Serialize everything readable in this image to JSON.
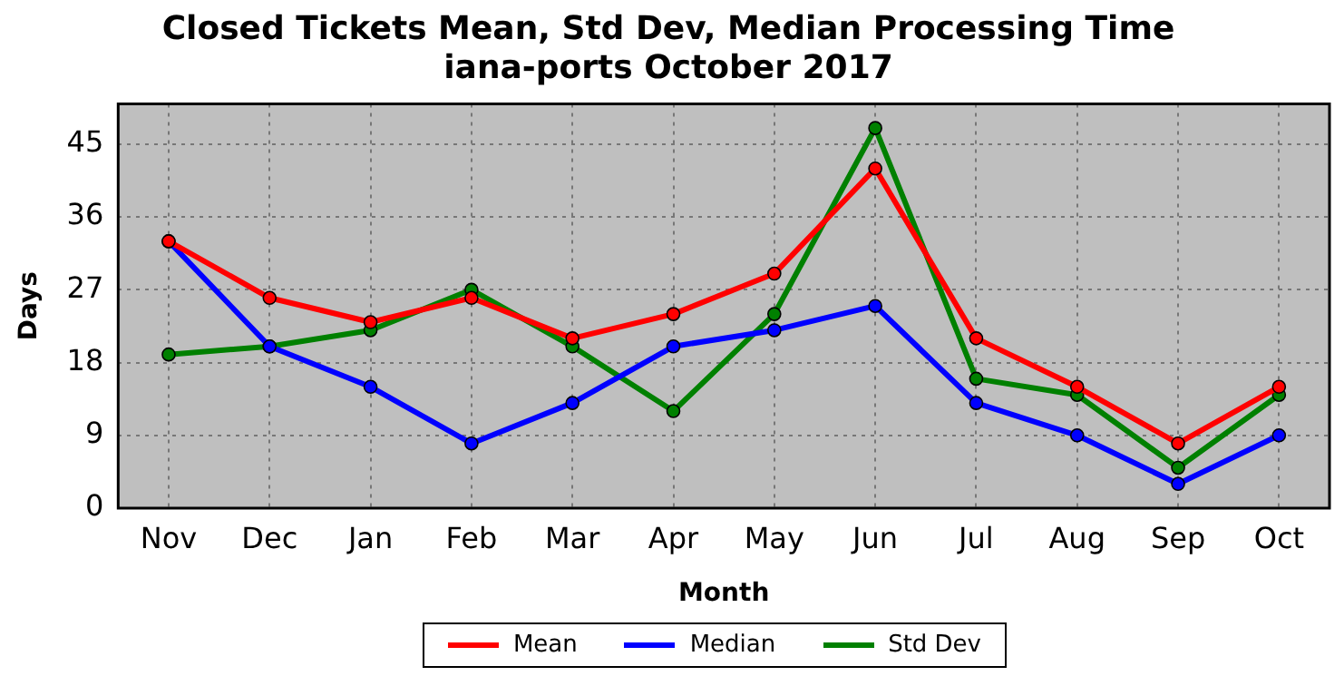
{
  "chart_data": {
    "type": "line",
    "title": "Closed Tickets Mean, Std Dev, Median Processing Time",
    "subtitle": "iana-ports October 2017",
    "xlabel": "Month",
    "ylabel": "Days",
    "categories": [
      "Nov",
      "Dec",
      "Jan",
      "Feb",
      "Mar",
      "Apr",
      "May",
      "Jun",
      "Jul",
      "Aug",
      "Sep",
      "Oct"
    ],
    "series": [
      {
        "name": "Mean",
        "color": "#ff0000",
        "values": [
          33,
          26,
          23,
          26,
          21,
          24,
          29,
          42,
          21,
          15,
          8,
          15
        ]
      },
      {
        "name": "Median",
        "color": "#0000ff",
        "values": [
          33,
          20,
          15,
          8,
          13,
          20,
          22,
          25,
          13,
          9,
          3,
          9
        ]
      },
      {
        "name": "Std Dev",
        "color": "#008000",
        "values": [
          19,
          20,
          22,
          27,
          20,
          12,
          24,
          47,
          16,
          14,
          5,
          14
        ]
      }
    ],
    "ylim": [
      0,
      50
    ],
    "yticks": [
      0,
      9,
      18,
      27,
      36,
      45
    ],
    "grid": true,
    "legend": "bottom",
    "marker": "circle",
    "line_style": "solid"
  }
}
